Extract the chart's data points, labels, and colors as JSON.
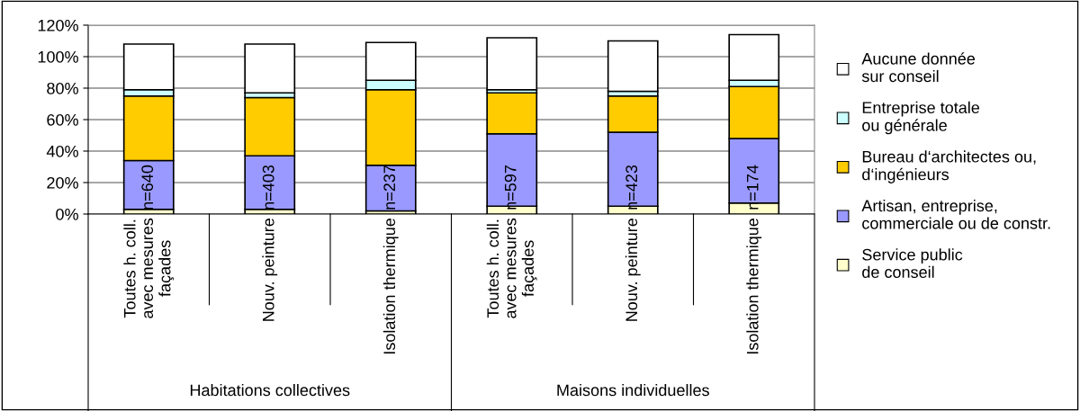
{
  "chart_data": {
    "type": "bar",
    "stacked": true,
    "categories": [
      "Toutes h. coll.\navec mesures\nfaçades",
      "Nouv. peinture",
      "Isolation thermique",
      "Toutes h. coll.\navec mesures\nfaçades",
      "Nouv. peinture",
      "Isolation thermique"
    ],
    "series": [
      {
        "name": "Service public\nde conseil",
        "color": "#ffffcc",
        "values": [
          3,
          3,
          2,
          5,
          5,
          7
        ]
      },
      {
        "name": "Artisan, entreprise,\ncommerciale ou de constr.",
        "color": "#9999ff",
        "values": [
          31,
          34,
          29,
          46,
          47,
          41
        ]
      },
      {
        "name": "Bureau d‘architectes ou,\nd‘ingénieurs",
        "color": "#ffcc00",
        "values": [
          41,
          37,
          48,
          26,
          23,
          33
        ]
      },
      {
        "name": "Entreprise totale\nou générale",
        "color": "#ccffff",
        "values": [
          4,
          3,
          6,
          2,
          3,
          4
        ]
      },
      {
        "name": "Aucune donnée\nsur conseil",
        "color": "#ffffff",
        "values": [
          29,
          31,
          24,
          33,
          32,
          29
        ]
      }
    ],
    "ylim": [
      0,
      120
    ],
    "yticks": [
      {
        "value": 0,
        "label": "0%"
      },
      {
        "value": 20,
        "label": "20%"
      },
      {
        "value": 40,
        "label": "40%"
      },
      {
        "value": 60,
        "label": "60%"
      },
      {
        "value": 80,
        "label": "80%"
      },
      {
        "value": 100,
        "label": "100%"
      },
      {
        "value": 120,
        "label": "120%"
      }
    ],
    "grid": "y",
    "legend": "right",
    "annotations": [
      "n=640",
      "n=403",
      "n=237",
      "n=597",
      "n=423",
      "n=174",
      "Habitations collectives",
      "Maisons individuelles"
    ]
  }
}
